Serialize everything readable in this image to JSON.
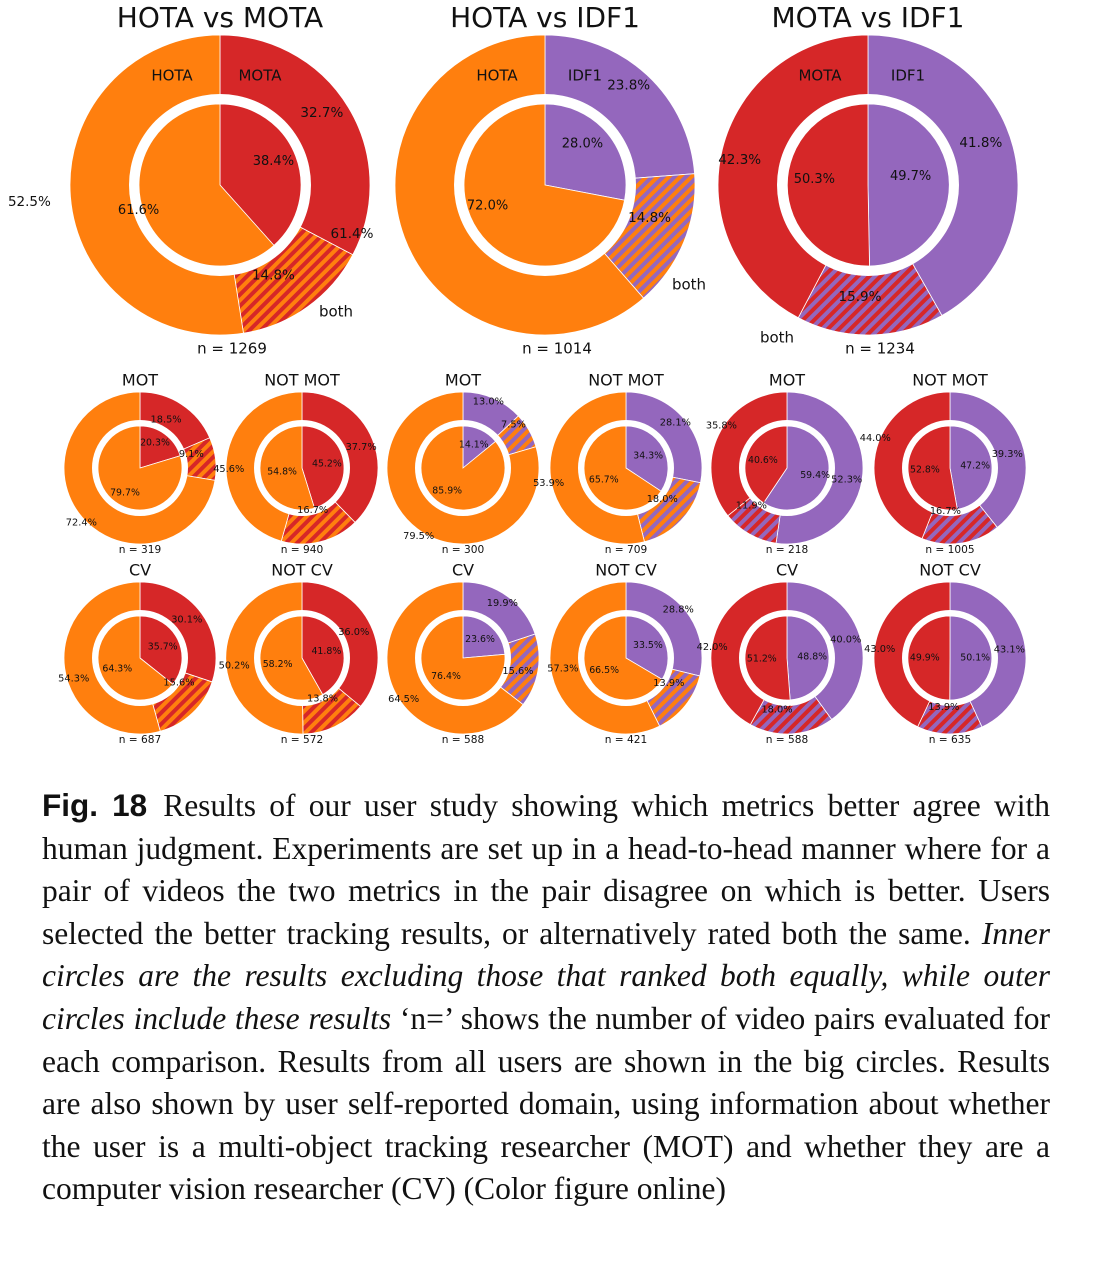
{
  "colors": {
    "HOTA": "#ff7f0e",
    "MOTA": "#d62728",
    "IDF1": "#9467bd",
    "hatch": "#8b6ea8",
    "ring_gap": "#ffffff"
  },
  "chart_data": [
    {
      "type": "pie",
      "style": "nested-donut",
      "title": "HOTA vs MOTA",
      "n_label": "n = 1269",
      "left_label": "HOTA",
      "right_label": "MOTA",
      "both_label": "both",
      "outer": {
        "HOTA": 52.5,
        "MOTA": 32.7,
        "both": 14.8
      },
      "inner": {
        "HOTA": 61.6,
        "MOTA": 38.4
      },
      "outer_labels": [
        "52.5%",
        "32.7%",
        "14.8%"
      ],
      "inner_labels": [
        "61.6%",
        "38.4%"
      ]
    },
    {
      "type": "pie",
      "style": "nested-donut",
      "title": "HOTA vs IDF1",
      "n_label": "n = 1014",
      "left_label": "HOTA",
      "right_label": "IDF1",
      "both_label": "both",
      "outer": {
        "HOTA": 61.4,
        "IDF1": 23.8,
        "both": 14.8
      },
      "inner": {
        "HOTA": 72.0,
        "IDF1": 28.0
      },
      "outer_labels": [
        "61.4%",
        "23.8%",
        "14.8%"
      ],
      "inner_labels": [
        "72.0%",
        "28.0%"
      ]
    },
    {
      "type": "pie",
      "style": "nested-donut",
      "title": "MOTA vs IDF1",
      "n_label": "n = 1234",
      "left_label": "MOTA",
      "right_label": "IDF1",
      "both_label": "both",
      "outer": {
        "MOTA": 42.3,
        "IDF1": 41.8,
        "both": 15.9
      },
      "inner": {
        "MOTA": 50.3,
        "IDF1": 49.7
      },
      "outer_labels": [
        "42.3%",
        "41.8%",
        "15.9%"
      ],
      "inner_labels": [
        "50.3%",
        "49.7%"
      ]
    },
    {
      "type": "pie",
      "style": "nested-donut",
      "pair": "HOTA vs MOTA",
      "title": "MOT",
      "n_label": "n = 319",
      "outer": {
        "HOTA": 72.4,
        "MOTA": 18.5,
        "both": 9.1
      },
      "inner": {
        "HOTA": 79.7,
        "MOTA": 20.3
      },
      "outer_labels": [
        "72.4%",
        "18.5%",
        "9.1%"
      ],
      "inner_labels": [
        "79.7%",
        "20.3%"
      ]
    },
    {
      "type": "pie",
      "style": "nested-donut",
      "pair": "HOTA vs MOTA",
      "title": "NOT MOT",
      "n_label": "n = 940",
      "outer": {
        "HOTA": 45.6,
        "MOTA": 37.7,
        "both": 16.7
      },
      "inner": {
        "HOTA": 54.8,
        "MOTA": 45.2
      },
      "outer_labels": [
        "45.6%",
        "37.7%",
        "16.7%"
      ],
      "inner_labels": [
        "54.8%",
        "45.2%"
      ]
    },
    {
      "type": "pie",
      "style": "nested-donut",
      "pair": "HOTA vs IDF1",
      "title": "MOT",
      "n_label": "n = 300",
      "outer": {
        "HOTA": 79.5,
        "IDF1": 13.0,
        "both": 7.5
      },
      "inner": {
        "HOTA": 85.9,
        "IDF1": 14.1
      },
      "outer_labels": [
        "79.5%",
        "13.0%",
        "7.5%"
      ],
      "inner_labels": [
        "85.9%",
        "14.1%"
      ]
    },
    {
      "type": "pie",
      "style": "nested-donut",
      "pair": "HOTA vs IDF1",
      "title": "NOT MOT",
      "n_label": "n = 709",
      "outer": {
        "HOTA": 53.9,
        "IDF1": 28.1,
        "both": 18.0
      },
      "inner": {
        "HOTA": 65.7,
        "IDF1": 34.3
      },
      "outer_labels": [
        "53.9%",
        "28.1%",
        "18.0%"
      ],
      "inner_labels": [
        "65.7%",
        "34.3%"
      ]
    },
    {
      "type": "pie",
      "style": "nested-donut",
      "pair": "MOTA vs IDF1",
      "title": "MOT",
      "n_label": "n = 218",
      "outer": {
        "MOTA": 35.8,
        "IDF1": 52.3,
        "both": 11.9
      },
      "inner": {
        "MOTA": 40.6,
        "IDF1": 59.4
      },
      "outer_labels": [
        "35.8%",
        "52.3%",
        "11.9%"
      ],
      "inner_labels": [
        "40.6%",
        "59.4%"
      ]
    },
    {
      "type": "pie",
      "style": "nested-donut",
      "pair": "MOTA vs IDF1",
      "title": "NOT MOT",
      "n_label": "n = 1005",
      "outer": {
        "MOTA": 44.0,
        "IDF1": 39.3,
        "both": 16.7
      },
      "inner": {
        "MOTA": 52.8,
        "IDF1": 47.2
      },
      "outer_labels": [
        "44.0%",
        "39.3%",
        "16.7%"
      ],
      "inner_labels": [
        "52.8%",
        "47.2%"
      ]
    },
    {
      "type": "pie",
      "style": "nested-donut",
      "pair": "HOTA vs MOTA",
      "title": "CV",
      "n_label": "n = 687",
      "outer": {
        "HOTA": 54.3,
        "MOTA": 30.1,
        "both": 15.6
      },
      "inner": {
        "HOTA": 64.3,
        "MOTA": 35.7
      },
      "outer_labels": [
        "54.3%",
        "30.1%",
        "15.6%"
      ],
      "inner_labels": [
        "64.3%",
        "35.7%"
      ]
    },
    {
      "type": "pie",
      "style": "nested-donut",
      "pair": "HOTA vs MOTA",
      "title": "NOT CV",
      "n_label": "n = 572",
      "outer": {
        "HOTA": 50.2,
        "MOTA": 36.0,
        "both": 13.8
      },
      "inner": {
        "HOTA": 58.2,
        "MOTA": 41.8
      },
      "outer_labels": [
        "50.2%",
        "36.0%",
        "13.8%"
      ],
      "inner_labels": [
        "58.2%",
        "41.8%"
      ]
    },
    {
      "type": "pie",
      "style": "nested-donut",
      "pair": "HOTA vs IDF1",
      "title": "CV",
      "n_label": "n = 588",
      "outer": {
        "HOTA": 64.5,
        "IDF1": 19.9,
        "both": 15.6
      },
      "inner": {
        "HOTA": 76.4,
        "IDF1": 23.6
      },
      "outer_labels": [
        "64.5%",
        "19.9%",
        "15.6%"
      ],
      "inner_labels": [
        "76.4%",
        "23.6%"
      ]
    },
    {
      "type": "pie",
      "style": "nested-donut",
      "pair": "HOTA vs IDF1",
      "title": "NOT CV",
      "n_label": "n = 421",
      "outer": {
        "HOTA": 57.3,
        "IDF1": 28.8,
        "both": 13.9
      },
      "inner": {
        "HOTA": 66.5,
        "IDF1": 33.5
      },
      "outer_labels": [
        "57.3%",
        "28.8%",
        "13.9%"
      ],
      "inner_labels": [
        "66.5%",
        "33.5%"
      ]
    },
    {
      "type": "pie",
      "style": "nested-donut",
      "pair": "MOTA vs IDF1",
      "title": "CV",
      "n_label": "n = 588",
      "outer": {
        "MOTA": 42.0,
        "IDF1": 40.0,
        "both": 18.0
      },
      "inner": {
        "MOTA": 51.2,
        "IDF1": 48.8
      },
      "outer_labels": [
        "42.0%",
        "40.0%",
        "18.0%"
      ],
      "inner_labels": [
        "51.2%",
        "48.8%"
      ]
    },
    {
      "type": "pie",
      "style": "nested-donut",
      "pair": "MOTA vs IDF1",
      "title": "NOT CV",
      "n_label": "n = 635",
      "outer": {
        "MOTA": 43.0,
        "IDF1": 43.1,
        "both": 13.9
      },
      "inner": {
        "MOTA": 49.9,
        "IDF1": 50.1
      },
      "outer_labels": [
        "43.0%",
        "43.1%",
        "13.9%"
      ],
      "inner_labels": [
        "49.9%",
        "50.1%"
      ]
    }
  ],
  "caption": {
    "fig_label": "Fig. 18",
    "text_a": "Results of our user study showing which metrics better agree with human judgment. Experiments are set up in a head-to-head manner where for a pair of videos the two metrics in the pair disagree on which is better. Users selected the better tracking results, or alternatively rated both the same.",
    "text_italic": "Inner circles are the results excluding those that ranked both equally, while outer circles include these results",
    "text_b": "‘n=’ shows the number of video pairs evaluated for each comparison. Results from all users are shown in the big circles. Results are also shown by user self-reported domain, using information about whether the user is a multi-object tracking researcher (MOT) and whether they are a computer vision researcher (CV) (Color figure online)"
  }
}
